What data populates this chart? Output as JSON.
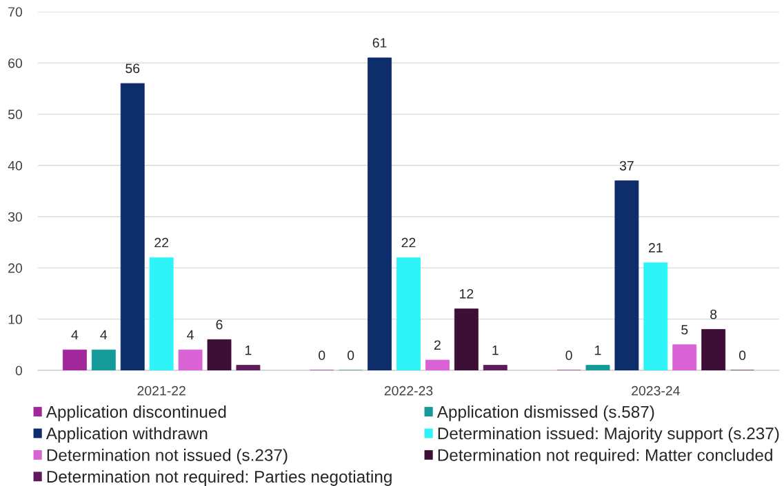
{
  "chart_data": {
    "type": "bar",
    "categories": [
      "2021-22",
      "2022-23",
      "2023-24"
    ],
    "series": [
      {
        "name": "Application discontinued",
        "color": "#a0289a",
        "values": [
          4,
          0,
          0
        ]
      },
      {
        "name": "Application dismissed (s.587)",
        "color": "#159a9a",
        "values": [
          4,
          0,
          1
        ]
      },
      {
        "name": "Application withdrawn",
        "color": "#0e2d6b",
        "values": [
          56,
          61,
          37
        ]
      },
      {
        "name": "Determination issued: Majority support (s.237)",
        "color": "#2ef4f8",
        "values": [
          22,
          22,
          21
        ]
      },
      {
        "name": "Determination not issued (s.237)",
        "color": "#d962d4",
        "values": [
          4,
          2,
          5
        ]
      },
      {
        "name": "Determination not required: Matter concluded",
        "color": "#3d0e36",
        "values": [
          6,
          12,
          8
        ]
      },
      {
        "name": "Determination not required: Parties negotiating",
        "color": "#5f1a5c",
        "values": [
          1,
          1,
          0
        ]
      }
    ],
    "ylim": [
      0,
      70
    ],
    "yticks": [
      0,
      10,
      20,
      30,
      40,
      50,
      60,
      70
    ],
    "grid": "y",
    "legend": "bottom",
    "data_labels": true
  }
}
